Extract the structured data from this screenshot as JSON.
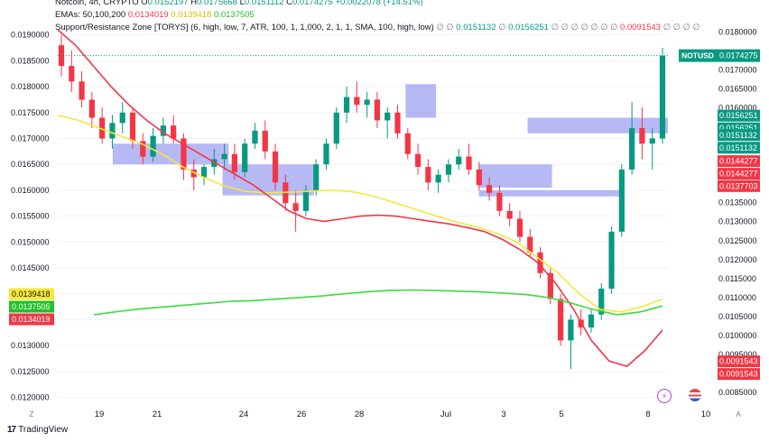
{
  "legend": {
    "line1": {
      "symbol": "Notcoin, 4h, CRYPTO",
      "o_label": "O",
      "o": "0.0152197",
      "h_label": "H",
      "h": "0.0175668",
      "l_label": "L",
      "l": "0.0151112",
      "c_label": "C",
      "c": "0.0174275",
      "chg": "+0.0022078 (+14.51%)"
    },
    "line2": {
      "label": "EMAs: 50,100,200",
      "v1": "0.0134019",
      "v2": "0.0139418",
      "v3": "0.0137505"
    },
    "line3": {
      "label": "Support/Resistance Zone [TORYS] (6, high, low, 7, ATR, 100, 1, 1,000, 2, 1, 1, SMA, 100, high, low)",
      "pre": "∅ ∅",
      "v1": "0.0151132",
      "mid": "∅",
      "v2": "0.0156251",
      "mid2": "∅ ∅ ∅ ∅ ∅ ∅ ∅",
      "v3": "0.0091543",
      "post": "∅ ∅ ∅ ∅"
    }
  },
  "colors": {
    "up": "#089981",
    "down": "#f23645",
    "ema50": "#f23645",
    "ema100": "#f5e83b",
    "ema200": "#3fd93f",
    "zone": "#7b7fec",
    "grid": "#f0f3fa",
    "axis_text": "#131722"
  },
  "price_tag": {
    "label": "NOTUSD",
    "value": "0.0174275"
  },
  "y_badges": [
    {
      "value": "0.0156251",
      "color": "#089981"
    },
    {
      "value": "0.0156251",
      "color": "#089981"
    },
    {
      "value": "0.0151132",
      "color": "#089981"
    },
    {
      "value": "0.0151132",
      "color": "#089981"
    },
    {
      "value": "0.0144277",
      "color": "#f23645"
    },
    {
      "value": "0.0144277",
      "color": "#f23645"
    },
    {
      "value": "0.0137703",
      "color": "#f23645"
    },
    {
      "value": "0.0091543",
      "color": "#f23645"
    },
    {
      "value": "0.0091543",
      "color": "#f23645"
    }
  ],
  "y_badges_left": [
    {
      "value": "0.0139418",
      "color": "#f5e83b"
    },
    {
      "value": "0.0137505",
      "color": "#22c02a"
    },
    {
      "value": "0.0134019",
      "color": "#f23645"
    }
  ],
  "footer": {
    "brand": "TradingView"
  },
  "chart_data": [
    {
      "type": "candlestick",
      "title": "Notcoin, 4h, CRYPTO",
      "y_axis_left": {
        "ticks": [
          "0.0190000",
          "0.0185000",
          "0.0180000",
          "0.0175000",
          "0.0170000",
          "0.0165000",
          "0.0160000",
          "0.0155000",
          "0.0150000",
          "0.0145000",
          "0.0140000",
          "0.0135000",
          "0.0130000",
          "0.0125000",
          "0.0120000"
        ],
        "range": [
          0.0118,
          0.0195
        ]
      },
      "y_axis_right": {
        "ticks": [
          "0.0180000",
          "0.0170000",
          "0.0165000",
          "0.0160000",
          "0.0150000",
          "0.0135000",
          "0.0130000",
          "0.0125000",
          "0.0120000",
          "0.0115000",
          "0.0110000",
          "0.0105000",
          "0.0100000",
          "0.0095000",
          "0.0090000",
          "0.0085000"
        ],
        "range": [
          0.0081,
          0.0186
        ]
      },
      "x_axis": {
        "ticks": [
          "19",
          "21",
          "24",
          "26",
          "28",
          "Jul",
          "3",
          "5",
          "8",
          "10"
        ],
        "left_corner": "Z",
        "right_corner": "A"
      },
      "candles_left_scale": [
        [
          0.0188,
          0.019,
          0.0182,
          0.0184
        ],
        [
          0.0184,
          0.0187,
          0.0179,
          0.0181
        ],
        [
          0.0181,
          0.0183,
          0.0176,
          0.01775
        ],
        [
          0.01775,
          0.0179,
          0.0172,
          0.0174
        ],
        [
          0.0174,
          0.0176,
          0.0169,
          0.017
        ],
        [
          0.017,
          0.01745,
          0.0168,
          0.0173
        ],
        [
          0.0173,
          0.0177,
          0.0171,
          0.0175
        ],
        [
          0.0175,
          0.0176,
          0.0168,
          0.01695
        ],
        [
          0.01695,
          0.0171,
          0.0165,
          0.01665
        ],
        [
          0.01665,
          0.0172,
          0.01655,
          0.01705
        ],
        [
          0.01705,
          0.0174,
          0.0169,
          0.01725
        ],
        [
          0.01725,
          0.01745,
          0.0169,
          0.017
        ],
        [
          0.017,
          0.0171,
          0.0162,
          0.0164
        ],
        [
          0.0164,
          0.0166,
          0.016,
          0.01625
        ],
        [
          0.01625,
          0.0165,
          0.0161,
          0.01645
        ],
        [
          0.01645,
          0.0168,
          0.0163,
          0.0166
        ],
        [
          0.0166,
          0.0169,
          0.0164,
          0.0167
        ],
        [
          0.0167,
          0.0169,
          0.0162,
          0.01635
        ],
        [
          0.01635,
          0.017,
          0.01625,
          0.0169
        ],
        [
          0.0169,
          0.0173,
          0.0168,
          0.01715
        ],
        [
          0.01715,
          0.01735,
          0.0166,
          0.01675
        ],
        [
          0.01675,
          0.0169,
          0.016,
          0.01615
        ],
        [
          0.01615,
          0.0163,
          0.0156,
          0.01575
        ],
        [
          0.01575,
          0.016,
          0.0152,
          0.0156
        ],
        [
          0.0156,
          0.0161,
          0.0155,
          0.016
        ],
        [
          0.016,
          0.0166,
          0.0159,
          0.0165
        ],
        [
          0.0165,
          0.017,
          0.0164,
          0.0169
        ],
        [
          0.0169,
          0.0176,
          0.0168,
          0.0175
        ],
        [
          0.0175,
          0.018,
          0.0173,
          0.0178
        ],
        [
          0.0178,
          0.0181,
          0.0175,
          0.01765
        ],
        [
          0.01765,
          0.0179,
          0.0174,
          0.01775
        ],
        [
          0.01775,
          0.0179,
          0.0172,
          0.01735
        ],
        [
          0.01735,
          0.0176,
          0.017,
          0.0175
        ],
        [
          0.0175,
          0.01765,
          0.017,
          0.0171
        ],
        [
          0.0171,
          0.0172,
          0.0166,
          0.0167
        ],
        [
          0.0167,
          0.0169,
          0.0163,
          0.01645
        ],
        [
          0.01645,
          0.0166,
          0.016,
          0.01615
        ],
        [
          0.01615,
          0.0164,
          0.01595,
          0.0163
        ],
        [
          0.0163,
          0.0166,
          0.01615,
          0.0165
        ],
        [
          0.0165,
          0.0168,
          0.0164,
          0.01665
        ],
        [
          0.01665,
          0.0169,
          0.0163,
          0.0164
        ],
        [
          0.0164,
          0.01655,
          0.016,
          0.0161
        ],
        [
          0.0161,
          0.01625,
          0.0158,
          0.01595
        ],
        [
          0.01595,
          0.0161,
          0.0155,
          0.0156
        ],
        [
          0.0156,
          0.01575,
          0.0153,
          0.01545
        ],
        [
          0.01545,
          0.0156,
          0.015,
          0.0151
        ],
        [
          0.0151,
          0.01525,
          0.0147,
          0.0148
        ],
        [
          0.0148,
          0.0149,
          0.0143,
          0.0144
        ],
        [
          0.0144,
          0.0145,
          0.0138,
          0.0139
        ],
        [
          0.0139,
          0.014,
          0.013,
          0.0131
        ],
        [
          0.0131,
          0.0136,
          0.01255,
          0.0135
        ],
        [
          0.0135,
          0.0137,
          0.0132,
          0.01335
        ],
        [
          0.01335,
          0.0137,
          0.01325,
          0.0136
        ],
        [
          0.0136,
          0.0142,
          0.0135,
          0.0141
        ],
        [
          0.0141,
          0.0153,
          0.014,
          0.0152
        ],
        [
          0.0152,
          0.0165,
          0.0151,
          0.0164
        ],
        [
          0.0164,
          0.0177,
          0.0163,
          0.0172
        ],
        [
          0.0172,
          0.0176,
          0.0166,
          0.0169
        ],
        [
          0.0169,
          0.0172,
          0.0164,
          0.017
        ],
        [
          0.017,
          0.01875,
          0.0169,
          0.0186
        ]
      ],
      "ema50_left_scale": [
        0.0191,
        0.0188,
        0.0184,
        0.018,
        0.01765,
        0.01735,
        0.0171,
        0.0169,
        0.0167,
        0.0165,
        0.0163,
        0.0161,
        0.01585,
        0.0156,
        0.01545,
        0.0154,
        0.01545,
        0.0155,
        0.01552,
        0.0155,
        0.01545,
        0.0154,
        0.01535,
        0.01528,
        0.0152,
        0.01505,
        0.01485,
        0.0146,
        0.0142,
        0.0137,
        0.0131,
        0.0127,
        0.0126,
        0.0129,
        0.0133
      ],
      "ema100_left_scale": [
        0.01745,
        0.01735,
        0.0172,
        0.01705,
        0.0169,
        0.0167,
        0.01645,
        0.01625,
        0.01608,
        0.01598,
        0.01595,
        0.01596,
        0.01598,
        0.016,
        0.01598,
        0.0159,
        0.01578,
        0.01565,
        0.01552,
        0.0154,
        0.0153,
        0.01518,
        0.015,
        0.0147,
        0.0144,
        0.014,
        0.0137,
        0.01365,
        0.01375,
        0.0139
      ],
      "ema200_right_scale": [
        0.01055,
        0.01063,
        0.0107,
        0.01075,
        0.0108,
        0.01085,
        0.0109,
        0.01092,
        0.01096,
        0.011,
        0.01104,
        0.0111,
        0.01115,
        0.01119,
        0.0112,
        0.01119,
        0.01117,
        0.01115,
        0.01112,
        0.01108,
        0.011,
        0.01085,
        0.01068,
        0.01055,
        0.01062,
        0.01078
      ],
      "zones_left_scale": [
        {
          "x0": 0.09,
          "x1": 0.28,
          "top": 0.0169,
          "bottom": 0.0165
        },
        {
          "x0": 0.27,
          "x1": 0.42,
          "top": 0.0165,
          "bottom": 0.0159
        },
        {
          "x0": 0.57,
          "x1": 0.62,
          "top": 0.01805,
          "bottom": 0.0174
        },
        {
          "x0": 0.69,
          "x1": 0.81,
          "top": 0.0165,
          "bottom": 0.01605
        },
        {
          "x0": 0.69,
          "x1": 0.92,
          "top": 0.016,
          "bottom": 0.01588
        },
        {
          "x0": 0.77,
          "x1": 1.0,
          "top": 0.0174,
          "bottom": 0.0171
        }
      ]
    }
  ]
}
